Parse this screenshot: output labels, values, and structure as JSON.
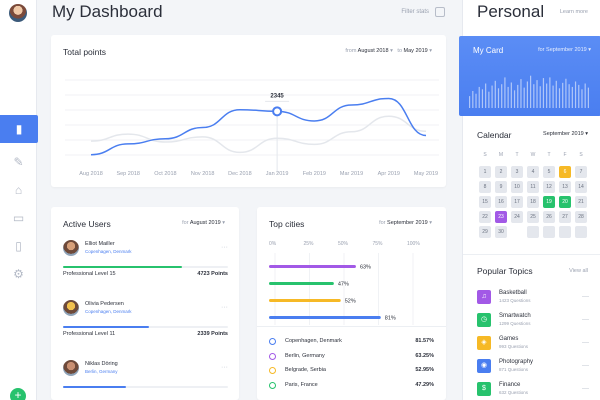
{
  "header": {
    "title": "My Dashboard",
    "filter_label": "Filter stats"
  },
  "sidebar": {
    "items": [
      {
        "name": "stats-icon",
        "glyph": "▮",
        "active": true
      },
      {
        "name": "brush-icon",
        "glyph": "✎",
        "active": false
      },
      {
        "name": "basket-icon",
        "glyph": "⌂",
        "active": false
      },
      {
        "name": "chat-icon",
        "glyph": "▭",
        "active": false
      },
      {
        "name": "document-icon",
        "glyph": "▯",
        "active": false
      },
      {
        "name": "settings-icon",
        "glyph": "⚙",
        "active": false
      }
    ],
    "fab_label": "+"
  },
  "total_points": {
    "title": "Total points",
    "range_from_label": "from",
    "range_from_value": "August 2018",
    "range_to_label": "to",
    "range_to_value": "May 2019"
  },
  "chart_data": {
    "type": "line",
    "title": "Total points",
    "categories": [
      "Aug 2018",
      "Sep 2018",
      "Oct 2018",
      "Nov 2018",
      "Dec 2018",
      "Jan 2019",
      "Feb 2019",
      "Mar 2019",
      "Apr 2019",
      "May 2019"
    ],
    "series": [
      {
        "values": [
          1420,
          1650,
          1760,
          2000,
          2380,
          2345,
          2140,
          2480,
          2620,
          1830
        ]
      },
      {
        "values": [
          1710,
          1860,
          1690,
          1800,
          1470,
          1770,
          1640,
          1910,
          2240,
          1920
        ]
      }
    ],
    "highlight": {
      "index": 5,
      "label": "2345"
    },
    "ylim": [
      1200,
      2800
    ],
    "grid": true
  },
  "active_users": {
    "title": "Active Users",
    "range_label": "for",
    "range_value": "August 2019",
    "users": [
      {
        "name": "Elliot Mailler",
        "location": "Copenhagen, Denmark",
        "level": "Professional Level 15",
        "points": "4723 Points",
        "progress": 0.72,
        "color": "#27c26d"
      },
      {
        "name": "Olivia Pedersen",
        "location": "Copenhagen, Denmark",
        "level": "Professional Level 11",
        "points": "2339 Points",
        "progress": 0.52,
        "color": "#4a7ef0"
      },
      {
        "name": "Niklas Döring",
        "location": "Berlin, Germany",
        "level": "",
        "points": "",
        "progress": 0.38,
        "color": "#4a7ef0"
      }
    ]
  },
  "top_cities": {
    "title": "Top cities",
    "range_label": "for",
    "range_value": "September 2019",
    "axis": [
      "0%",
      "25%",
      "50%",
      "75%",
      "100%"
    ],
    "bars": [
      {
        "label": "63%",
        "value": 63,
        "color": "#a259e6"
      },
      {
        "label": "47%",
        "value": 47,
        "color": "#27c26d"
      },
      {
        "label": "52%",
        "value": 52,
        "color": "#f6b926"
      },
      {
        "label": "81%",
        "value": 81,
        "color": "#4a7ef0"
      }
    ],
    "list": [
      {
        "name": "Copenhagen, Denmark",
        "pct": "81.57%",
        "color": "#4a7ef0"
      },
      {
        "name": "Berlin, Germany",
        "pct": "63.25%",
        "color": "#a259e6"
      },
      {
        "name": "Belgrade, Serbia",
        "pct": "52.95%",
        "color": "#f6b926"
      },
      {
        "name": "Paris, France",
        "pct": "47.29%",
        "color": "#27c26d"
      }
    ]
  },
  "personal": {
    "title": "Personal",
    "learn_more": "Learn more",
    "my_card": {
      "title": "My Card",
      "range_label": "for",
      "range_value": "September 2019"
    },
    "my_card_bars": [
      0.35,
      0.5,
      0.42,
      0.62,
      0.55,
      0.72,
      0.48,
      0.66,
      0.8,
      0.58,
      0.7,
      0.9,
      0.62,
      0.75,
      0.52,
      0.68,
      0.85,
      0.6,
      0.78,
      0.95,
      0.7,
      0.82,
      0.64,
      0.88,
      0.72,
      0.9,
      0.66,
      0.8,
      0.58,
      0.74,
      0.86,
      0.7,
      0.62,
      0.78,
      0.68,
      0.55,
      0.72,
      0.6
    ],
    "calendar": {
      "title": "Calendar",
      "month": "September 2019",
      "weekdays": [
        "S",
        "M",
        "T",
        "W",
        "T",
        "F",
        "S"
      ],
      "days": [
        {
          "d": "1",
          "s": ""
        },
        {
          "d": "2",
          "s": ""
        },
        {
          "d": "3",
          "s": ""
        },
        {
          "d": "4",
          "s": ""
        },
        {
          "d": "5",
          "s": ""
        },
        {
          "d": "6",
          "s": "y"
        },
        {
          "d": "7",
          "s": ""
        },
        {
          "d": "8",
          "s": ""
        },
        {
          "d": "9",
          "s": ""
        },
        {
          "d": "10",
          "s": ""
        },
        {
          "d": "11",
          "s": ""
        },
        {
          "d": "12",
          "s": ""
        },
        {
          "d": "13",
          "s": ""
        },
        {
          "d": "14",
          "s": ""
        },
        {
          "d": "15",
          "s": ""
        },
        {
          "d": "16",
          "s": ""
        },
        {
          "d": "17",
          "s": ""
        },
        {
          "d": "18",
          "s": ""
        },
        {
          "d": "19",
          "s": "g"
        },
        {
          "d": "20",
          "s": "g"
        },
        {
          "d": "21",
          "s": ""
        },
        {
          "d": "22",
          "s": ""
        },
        {
          "d": "23",
          "s": "p"
        },
        {
          "d": "24",
          "s": ""
        },
        {
          "d": "25",
          "s": ""
        },
        {
          "d": "26",
          "s": ""
        },
        {
          "d": "27",
          "s": ""
        },
        {
          "d": "28",
          "s": ""
        },
        {
          "d": "29",
          "s": ""
        },
        {
          "d": "30",
          "s": ""
        },
        {
          "d": "",
          "s": "e"
        },
        {
          "d": "",
          "s": ""
        },
        {
          "d": "",
          "s": ""
        },
        {
          "d": "",
          "s": ""
        },
        {
          "d": "",
          "s": ""
        }
      ]
    },
    "popular_topics": {
      "title": "Popular Topics",
      "view_all": "View all",
      "topics": [
        {
          "name": "Basketball",
          "questions": "1423 Questions",
          "color": "#a259e6",
          "icon": "headphones-icon",
          "glyph": "♫"
        },
        {
          "name": "Smartwatch",
          "questions": "1299 Questions",
          "color": "#27c26d",
          "icon": "watch-icon",
          "glyph": "◷"
        },
        {
          "name": "Games",
          "questions": "993 Questions",
          "color": "#f6b926",
          "icon": "gamepad-icon",
          "glyph": "◈"
        },
        {
          "name": "Photography",
          "questions": "871 Questions",
          "color": "#4a7ef0",
          "icon": "camera-icon",
          "glyph": "◉"
        },
        {
          "name": "Finance",
          "questions": "632 Questions",
          "color": "#27c26d",
          "icon": "wallet-icon",
          "glyph": "$"
        }
      ]
    }
  }
}
